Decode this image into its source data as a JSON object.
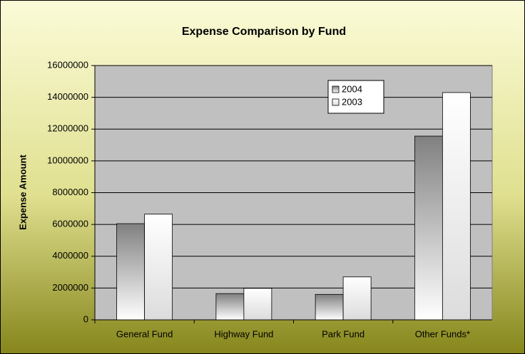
{
  "chart_data": {
    "type": "bar",
    "title": "Expense Comparison by Fund",
    "y_label": "Expense Amount",
    "categories": [
      "General Fund",
      "Highway Fund",
      "Park Fund",
      "Other Funds*"
    ],
    "series": [
      {
        "name": "2004",
        "color": "#808080",
        "values": [
          6050000,
          1650000,
          1600000,
          11560000
        ]
      },
      {
        "name": "2003",
        "color": "#ffffff",
        "values": [
          6650000,
          1980000,
          2700000,
          14300000
        ]
      }
    ],
    "ylim": [
      0,
      16000000
    ],
    "yticks": [
      0,
      2000000,
      4000000,
      6000000,
      8000000,
      10000000,
      12000000,
      14000000,
      16000000
    ],
    "grid": true,
    "legend": "top-right"
  }
}
